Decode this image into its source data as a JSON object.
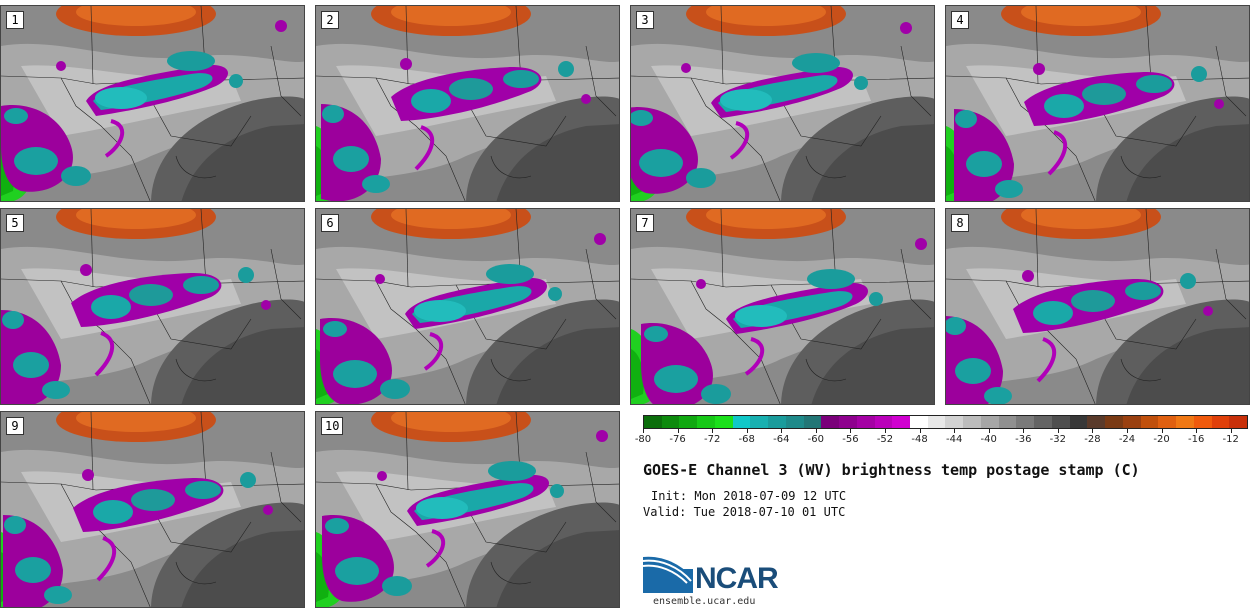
{
  "panels": [
    "1",
    "2",
    "3",
    "4",
    "5",
    "6",
    "7",
    "8",
    "9",
    "10"
  ],
  "colorbar": {
    "colors": [
      "#0b6e0b",
      "#0d8a0d",
      "#10a810",
      "#16c816",
      "#1be01b",
      "#10c8c8",
      "#18b0b0",
      "#1a9c9c",
      "#1e8a8a",
      "#227676",
      "#7a007a",
      "#8e008e",
      "#a400a4",
      "#ba00ba",
      "#d000d0",
      "#ffffff",
      "#e8e8e8",
      "#d2d2d2",
      "#bcbcbc",
      "#a6a6a6",
      "#909090",
      "#7a7a7a",
      "#646464",
      "#4e4e4e",
      "#383838",
      "#5a3a2a",
      "#7a3a14",
      "#9a4010",
      "#c0500c",
      "#e06010",
      "#f07814",
      "#f05a0c",
      "#e0400a",
      "#c8300a"
    ],
    "ticks": [
      "-80",
      "-76",
      "-72",
      "-68",
      "-64",
      "-60",
      "-56",
      "-52",
      "-48",
      "-44",
      "-40",
      "-36",
      "-32",
      "-28",
      "-24",
      "-20",
      "-16",
      "-12"
    ],
    "min": -80,
    "max": -10
  },
  "title": "GOES-E Channel 3 (WV) brightness temp postage stamp (C)",
  "init": "Init: Mon 2018-07-09 12 UTC",
  "valid": "Valid: Tue 2018-07-10 01 UTC",
  "logo": {
    "name": "NCAR",
    "url": "ensemble.ucar.edu"
  }
}
